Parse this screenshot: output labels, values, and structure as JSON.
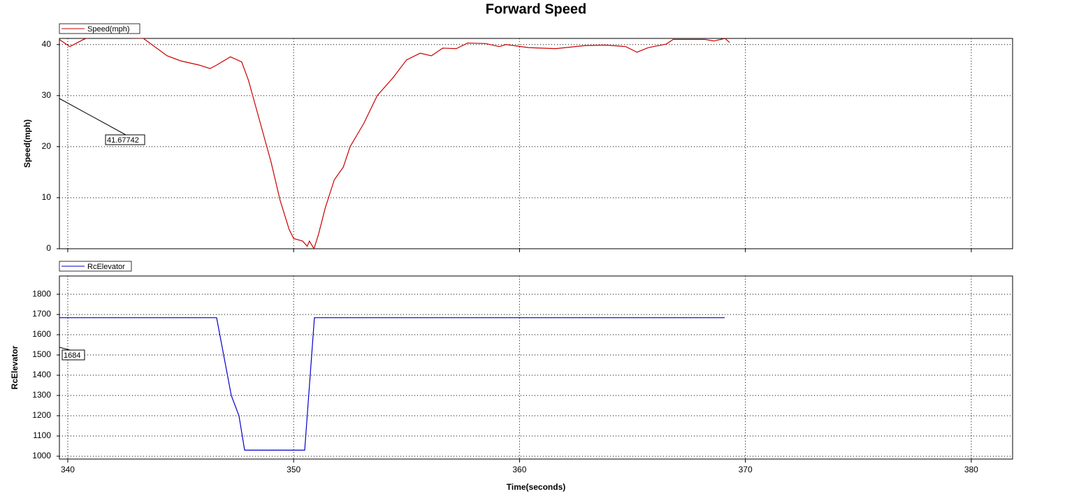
{
  "chart_data": [
    {
      "type": "line",
      "title": "Forward Speed",
      "ylabel": "Speed(mph)",
      "annotation": "41.67742",
      "x": [
        339.63,
        340.09,
        340.7,
        341.0,
        343.35,
        344.4,
        345.0,
        345.8,
        346.3,
        346.6,
        347.2,
        347.7,
        348.0,
        348.5,
        349.0,
        349.4,
        349.8,
        350.0,
        350.4,
        350.6,
        350.7,
        350.9,
        351.1,
        351.4,
        351.8,
        352.2,
        352.5,
        353.1,
        353.7,
        354.4,
        355.0,
        355.6,
        356.1,
        356.6,
        357.2,
        357.7,
        358.5,
        359.1,
        359.4,
        360.4,
        361.6,
        362.9,
        363.8,
        364.7,
        365.2,
        365.7,
        366.5,
        366.8,
        368.2,
        368.6,
        369.1,
        369.3
      ],
      "series": [
        {
          "name": "Speed(mph)",
          "color": "#cc0000",
          "values": [
            41,
            39.6,
            41,
            41.5,
            41.2,
            37.8,
            36.8,
            36,
            35.3,
            36,
            37.6,
            36.6,
            33,
            25,
            17,
            9.5,
            3.8,
            2,
            1.5,
            0.5,
            1.5,
            0,
            2.8,
            8,
            13.5,
            16,
            20,
            24.5,
            30,
            33.5,
            37,
            38.3,
            37.8,
            39.3,
            39.2,
            40.3,
            40.2,
            39.6,
            40,
            39.4,
            39.2,
            39.8,
            39.9,
            39.6,
            38.5,
            39.4,
            40.1,
            41,
            41,
            40.7,
            41.2,
            40.4
          ]
        }
      ],
      "xlim": [
        339.63,
        381.83
      ],
      "xticks": [
        340,
        350,
        360,
        370,
        380
      ],
      "show_xtick_labels": false,
      "ylim": [
        0,
        41.2
      ],
      "yticks": [
        0,
        10,
        20,
        30,
        40
      ],
      "grid": true
    },
    {
      "type": "line",
      "ylabel": "RcElevator",
      "xlabel": "Time(seconds)",
      "annotation": "1684",
      "x": [
        339.63,
        346.59,
        347.24,
        347.58,
        347.83,
        350.49,
        350.92,
        369.08
      ],
      "series": [
        {
          "name": "RcElevator",
          "color": "#0000cc",
          "values": [
            1684,
            1684,
            1300,
            1200,
            1030,
            1030,
            1684,
            1684
          ]
        }
      ],
      "xlim": [
        339.63,
        381.83
      ],
      "xticks": [
        340,
        350,
        360,
        370,
        380
      ],
      "show_xtick_labels": true,
      "ylim": [
        986,
        1890
      ],
      "yticks": [
        1000,
        1100,
        1200,
        1300,
        1400,
        1500,
        1600,
        1700,
        1800
      ],
      "grid": true
    }
  ]
}
